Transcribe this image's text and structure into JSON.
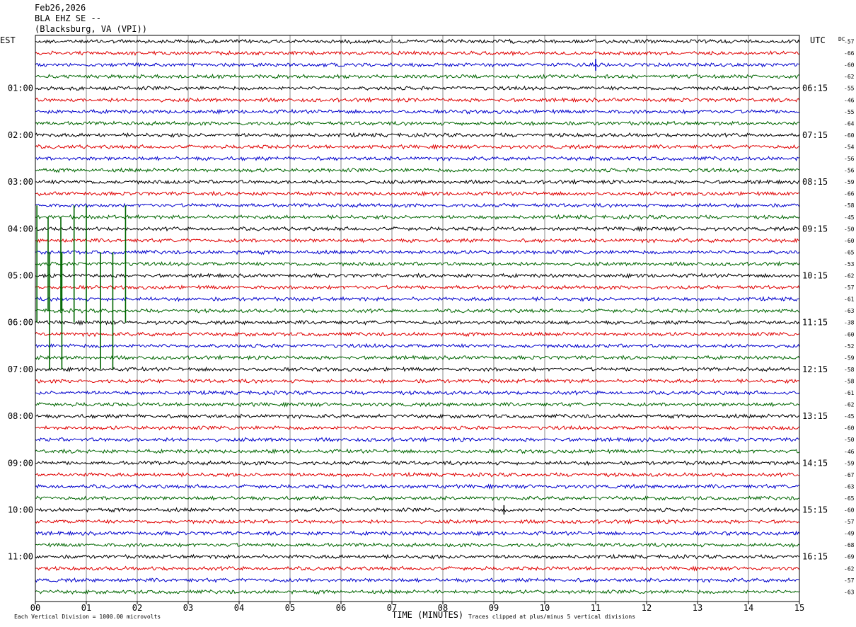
{
  "header": {
    "date": "Feb26,2026",
    "station_line": "BLA EHZ SE --",
    "location": "(Blacksburg, VA (VPI))"
  },
  "colors": {
    "trace_cycle": [
      "#000000",
      "#e00000",
      "#0000cc",
      "#006600"
    ],
    "grid": "#888888",
    "frame": "#000000"
  },
  "chart_data": {
    "type": "line",
    "title": "",
    "left_axis_label": "EST",
    "right_axis_label": "UTC",
    "right_column_label": "DC",
    "xlabel": "TIME (MINUTES)",
    "xlim": [
      0,
      15
    ],
    "x_ticks": [
      "00",
      "01",
      "02",
      "03",
      "04",
      "05",
      "06",
      "07",
      "08",
      "09",
      "10",
      "11",
      "12",
      "13",
      "14",
      "15"
    ],
    "rows_per_hour": 4,
    "row_count": 48,
    "left_hour_labels": [
      "01:00",
      "02:00",
      "03:00",
      "04:00",
      "05:00",
      "06:00",
      "07:00",
      "08:00",
      "09:00",
      "10:00",
      "11:00"
    ],
    "right_hour_labels": [
      "06:15",
      "07:15",
      "08:15",
      "09:15",
      "10:15",
      "11:15",
      "12:15",
      "13:15",
      "14:15",
      "15:15",
      "16:15"
    ],
    "hour_label_first_row": 4,
    "dc_offsets": [
      -57,
      -66,
      -60,
      -62,
      -55,
      -46,
      -55,
      -64,
      -60,
      -54,
      -56,
      -56,
      -59,
      -66,
      -58,
      -45,
      -50,
      -60,
      -65,
      -53,
      -62,
      -57,
      -61,
      -63,
      -38,
      -60,
      -52,
      -59,
      -58,
      -58,
      -61,
      -62,
      -45,
      -60,
      -50,
      -46,
      -59,
      -67,
      -63,
      -65,
      -60,
      -57,
      -49,
      -68,
      -69,
      -62,
      -57,
      -63
    ],
    "footer_left": "Each Vertical Division = 1000.00 microvolts",
    "footer_right": "Traces clipped at plus/minus 5 vertical divisions",
    "events": [
      {
        "row": 19,
        "minute": 0.03,
        "amp": 5
      },
      {
        "row": 19,
        "minute": 0.25,
        "amp": 4
      },
      {
        "row": 19,
        "minute": 0.5,
        "amp": 4
      },
      {
        "row": 19,
        "minute": 0.76,
        "amp": 5
      },
      {
        "row": 19,
        "minute": 1.0,
        "amp": 5
      },
      {
        "row": 19,
        "minute": 1.77,
        "amp": 5
      },
      {
        "row": 23,
        "minute": 0.28,
        "amp": 5
      },
      {
        "row": 23,
        "minute": 0.52,
        "amp": 5
      },
      {
        "row": 23,
        "minute": 1.28,
        "amp": 5
      },
      {
        "row": 23,
        "minute": 1.52,
        "amp": 5
      },
      {
        "row": 2,
        "minute": 11.0,
        "amp": 0.5
      },
      {
        "row": 40,
        "minute": 9.2,
        "amp": 0.4
      }
    ]
  }
}
